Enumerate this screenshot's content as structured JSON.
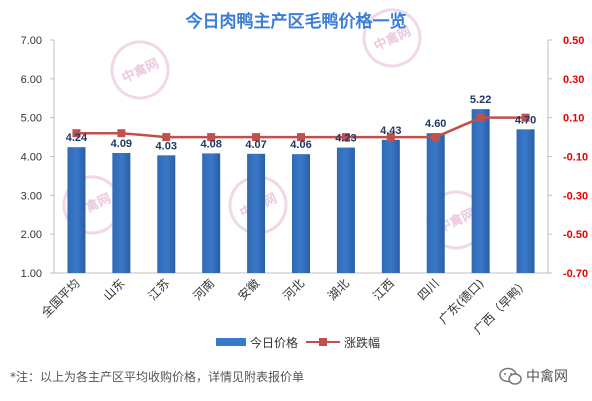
{
  "chart_data": {
    "type": "bar+line",
    "title": "今日肉鸭主产区毛鸭价格一览",
    "categories": [
      "全国平均",
      "山东",
      "江苏",
      "河南",
      "安徽",
      "河北",
      "湖北",
      "江西",
      "四川",
      "广东(德口)",
      "广西（早鸭）"
    ],
    "series": [
      {
        "name": "今日价格",
        "type": "bar",
        "axis": "left",
        "color": "#3a78c8",
        "values": [
          4.24,
          4.09,
          4.03,
          4.08,
          4.07,
          4.06,
          4.23,
          4.43,
          4.6,
          5.22,
          4.7
        ],
        "labels": [
          "4.24",
          "4.09",
          "4.03",
          "4.08",
          "4.07",
          "4.06",
          "4.23",
          "4.43",
          "4.60",
          "5.22",
          "4.70"
        ]
      },
      {
        "name": "涨跌幅",
        "type": "line",
        "axis": "right",
        "color": "#c0504d",
        "values": [
          0.02,
          0.02,
          0.0,
          0.0,
          0.0,
          0.0,
          0.0,
          0.0,
          0.0,
          0.1,
          0.1
        ]
      }
    ],
    "y_left": {
      "min": 1.0,
      "max": 7.0,
      "ticks": [
        "1.00",
        "2.00",
        "3.00",
        "4.00",
        "5.00",
        "6.00",
        "7.00"
      ]
    },
    "y_right": {
      "min": -0.7,
      "max": 0.5,
      "ticks": [
        "-0.70",
        "-0.50",
        "-0.30",
        "-0.10",
        "0.10",
        "0.30",
        "0.50"
      ]
    },
    "grid": false,
    "legend_position": "bottom"
  },
  "legend": {
    "bar_label": "今日价格",
    "line_label": "涨跌幅"
  },
  "note": "*注：以上为各主产区平均收购价格，详情见附表报价单",
  "logo": {
    "text": "中禽网",
    "icon": "wechat-icon"
  },
  "watermark": {
    "text": "中禽网"
  },
  "colors": {
    "title": "#3b7dd8",
    "bar": "#3a78c8",
    "line": "#c0504d",
    "right_axis": "#e60000"
  }
}
